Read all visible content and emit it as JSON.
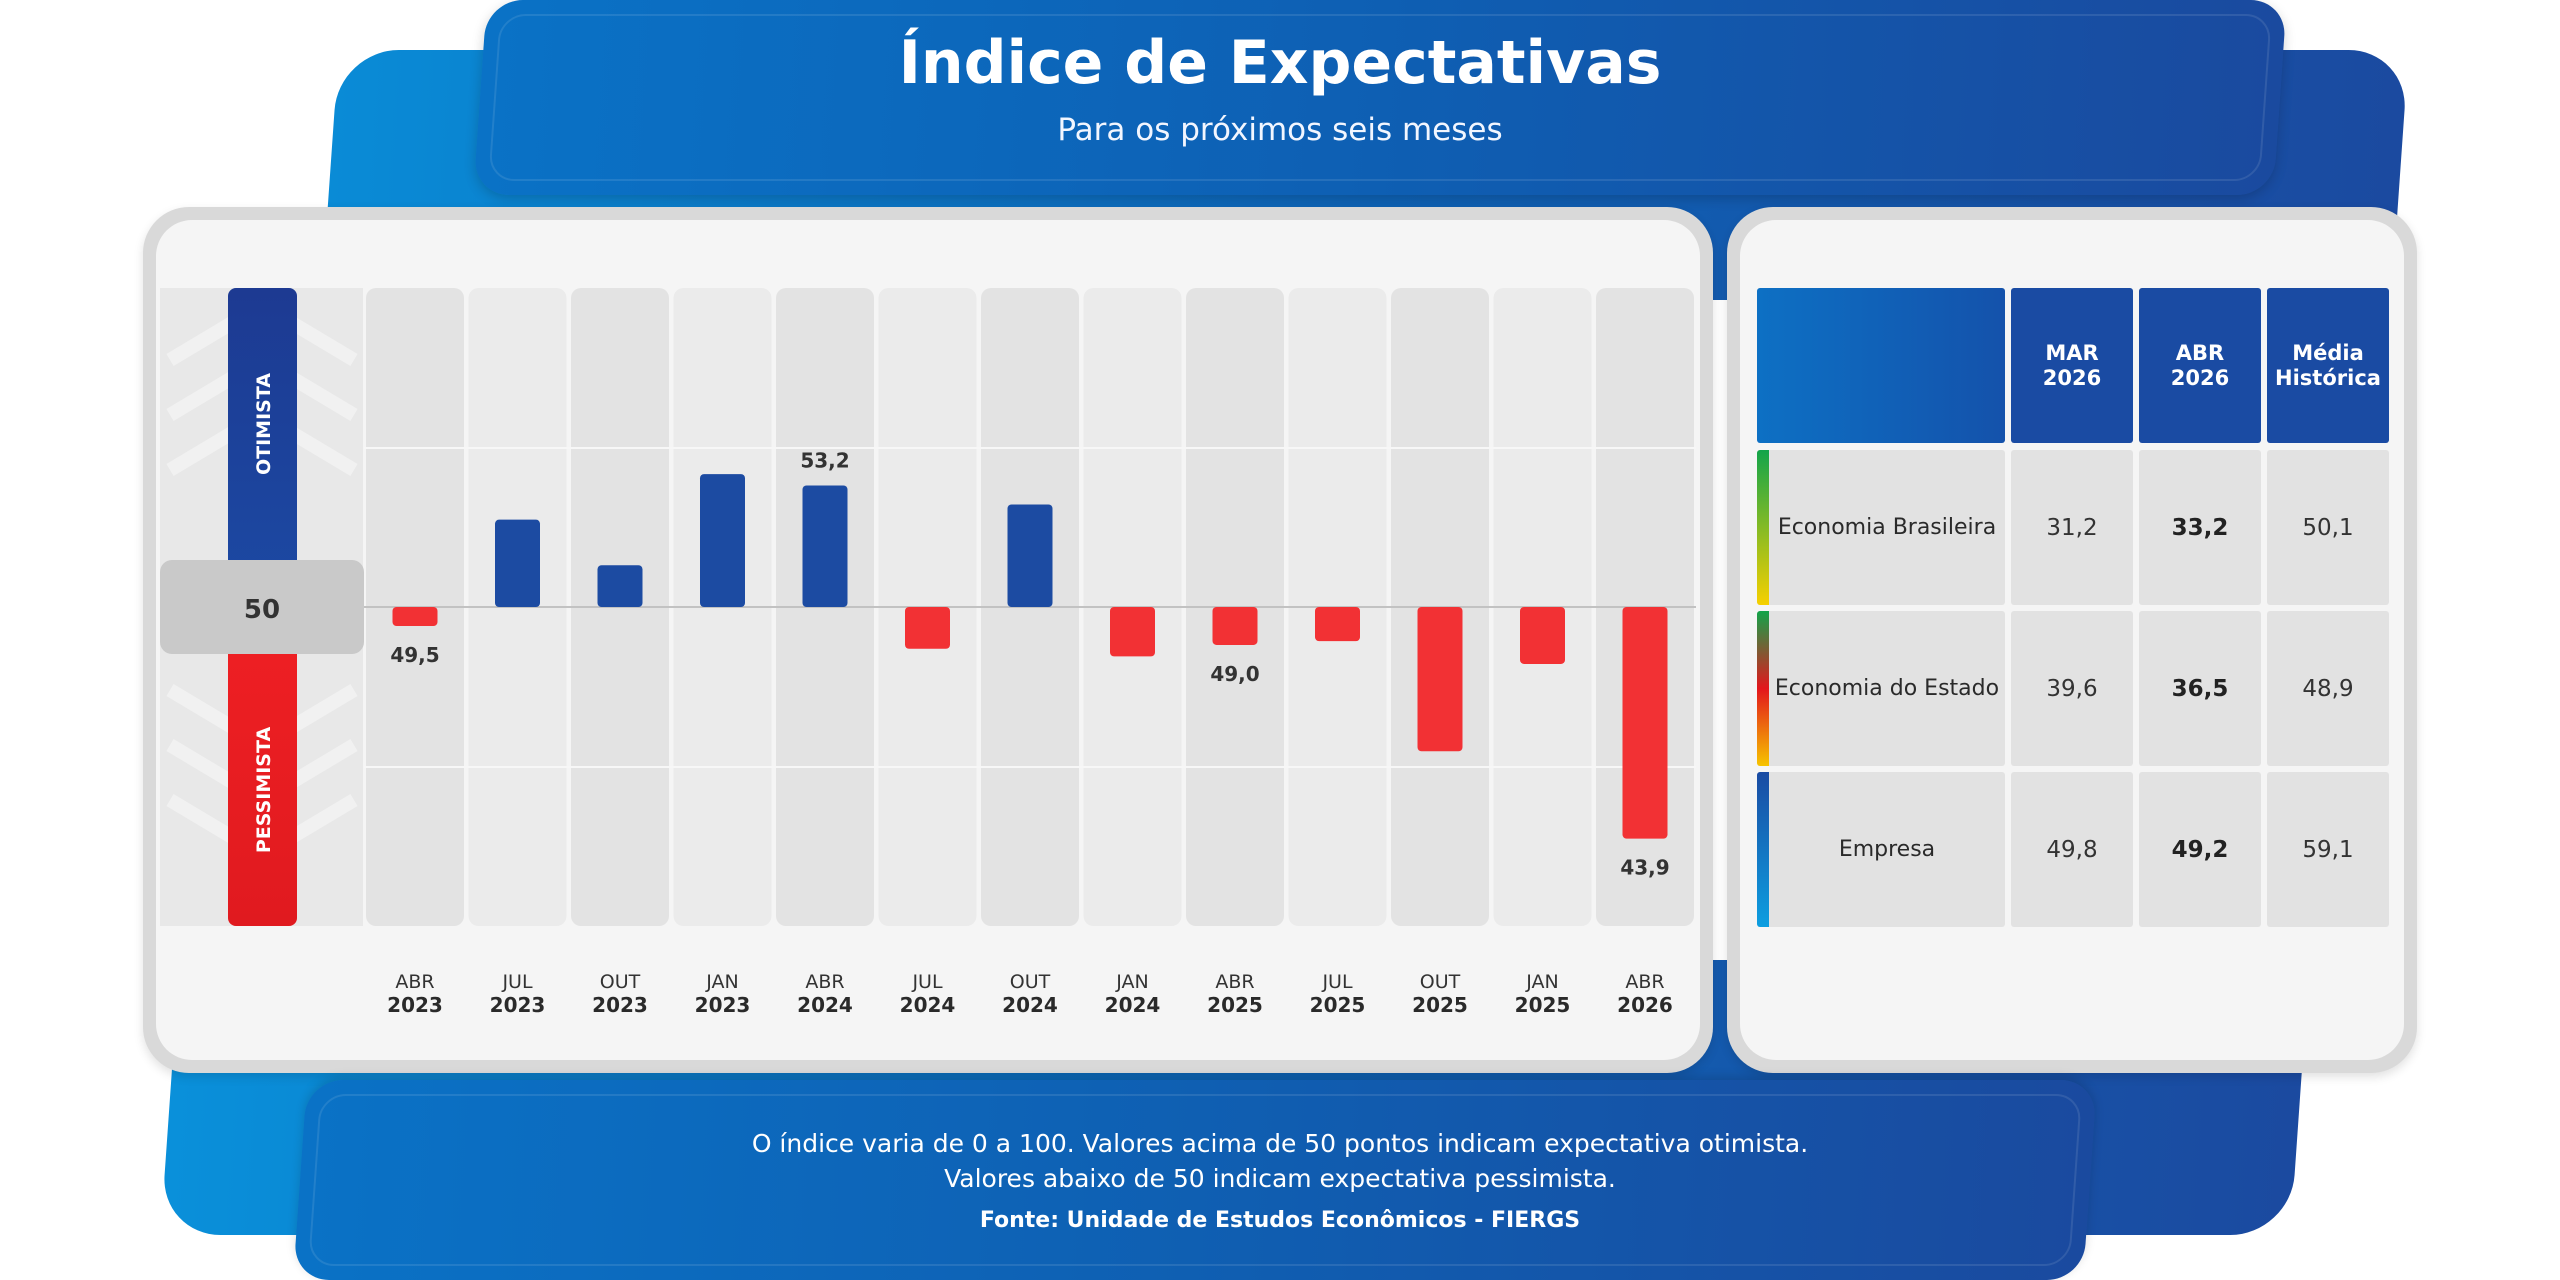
{
  "header": {
    "title": "Índice de Expectativas",
    "subtitle": "Para os próximos seis meses"
  },
  "footer": {
    "line1": "O índice varia de 0 a 100. Valores acima de 50 pontos indicam expectativa otimista.",
    "line2": "Valores abaixo de 50 indicam expectativa pessimista.",
    "source": "Fonte: Unidade de Estudos Econômicos - FIERGS"
  },
  "colors": {
    "positive": "#1c4ba2",
    "negative": "#f23134",
    "scale_top": "#1c3f99",
    "scale_bottom": "#ea1c22"
  },
  "chart_data": {
    "type": "bar",
    "baseline": 50,
    "baseline_label": "50",
    "scale_top_label": "OTIMISTA",
    "scale_bottom_label": "PESSIMISTA",
    "ylim": [
      42.4,
      58.4
    ],
    "categories": [
      {
        "month": "ABR",
        "year": "2023"
      },
      {
        "month": "JUL",
        "year": "2023"
      },
      {
        "month": "OUT",
        "year": "2023"
      },
      {
        "month": "JAN",
        "year": "2023"
      },
      {
        "month": "ABR",
        "year": "2024"
      },
      {
        "month": "JUL",
        "year": "2024"
      },
      {
        "month": "OUT",
        "year": "2024"
      },
      {
        "month": "JAN",
        "year": "2024"
      },
      {
        "month": "ABR",
        "year": "2025"
      },
      {
        "month": "JUL",
        "year": "2025"
      },
      {
        "month": "OUT",
        "year": "2025"
      },
      {
        "month": "JAN",
        "year": "2025"
      },
      {
        "month": "ABR",
        "year": "2026"
      }
    ],
    "values": [
      49.5,
      52.3,
      51.1,
      53.5,
      53.2,
      48.9,
      52.7,
      48.7,
      49.0,
      49.1,
      46.2,
      48.5,
      43.9
    ],
    "data_labels": [
      {
        "index": 0,
        "text": "49,5"
      },
      {
        "index": 4,
        "text": "53,2"
      },
      {
        "index": 8,
        "text": "49,0"
      },
      {
        "index": 12,
        "text": "43,9"
      }
    ]
  },
  "table": {
    "columns": [
      {
        "line1": "MAR",
        "line2": "2026"
      },
      {
        "line1": "ABR",
        "line2": "2026"
      },
      {
        "line1": "Média",
        "line2": "Histórica"
      }
    ],
    "rows": [
      {
        "label": "Economia Brasileira",
        "values": [
          "31,2",
          "33,2",
          "50,1"
        ],
        "accent": [
          "#12a44a",
          "#f6d000"
        ]
      },
      {
        "label": "Economia do Estado",
        "values": [
          "39,6",
          "36,5",
          "48,9"
        ],
        "accent": [
          "#12a44a",
          "#e3161c",
          "#f6c400"
        ]
      },
      {
        "label": "Empresa",
        "values": [
          "49,8",
          "49,2",
          "59,1"
        ],
        "accent": [
          "#1a4ba3",
          "#0d9ee0"
        ]
      }
    ]
  }
}
